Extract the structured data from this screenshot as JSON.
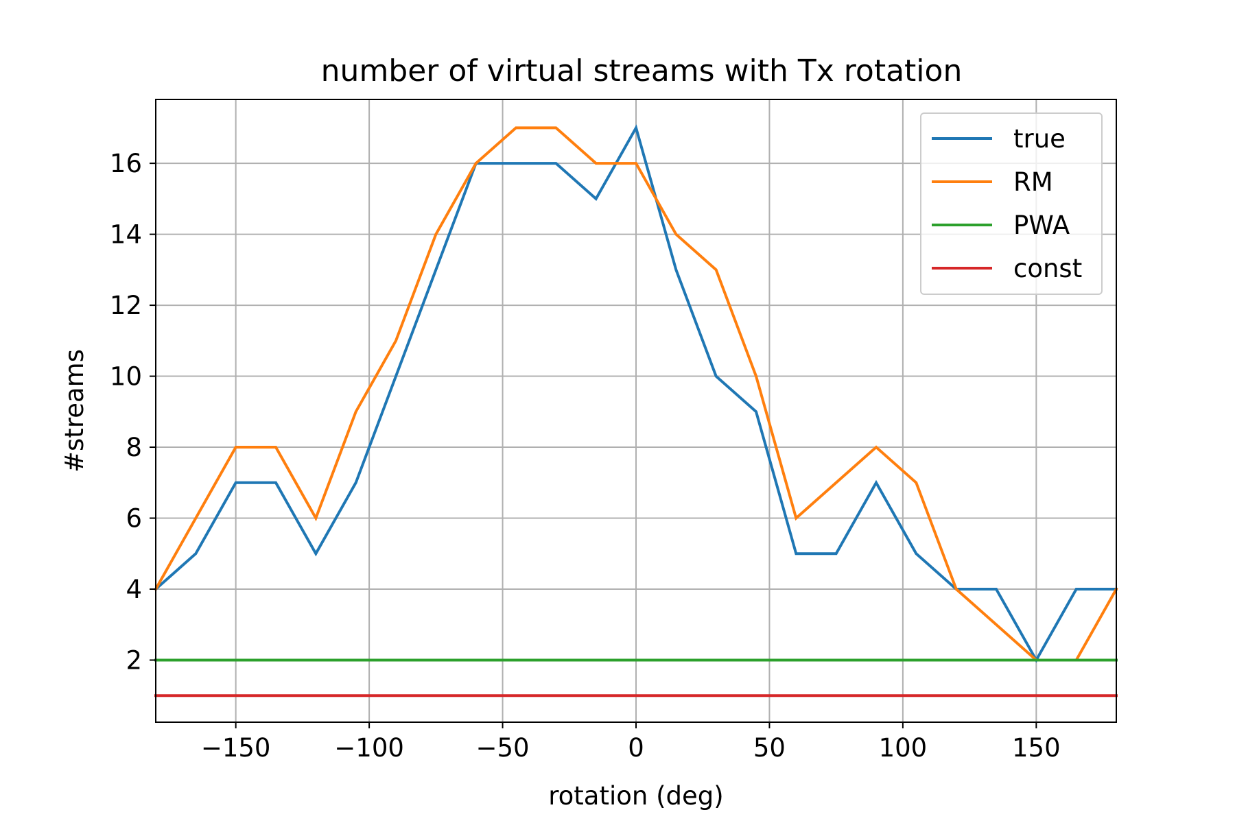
{
  "chart_data": {
    "type": "line",
    "title": "number of virtual streams with Tx rotation",
    "xlabel": "rotation (deg)",
    "ylabel": "#streams",
    "xlim": [
      -180,
      180
    ],
    "ylim": [
      0.25,
      17.8
    ],
    "xticks": [
      -150,
      -100,
      -50,
      0,
      50,
      100,
      150
    ],
    "xtick_labels": [
      "−150",
      "−100",
      "−50",
      "0",
      "50",
      "100",
      "150"
    ],
    "yticks": [
      2,
      4,
      6,
      8,
      10,
      12,
      14,
      16
    ],
    "ytick_labels": [
      "2",
      "4",
      "6",
      "8",
      "10",
      "12",
      "14",
      "16"
    ],
    "grid": true,
    "legend_position": "top-right",
    "x": [
      -180,
      -165,
      -150,
      -135,
      -120,
      -105,
      -90,
      -75,
      -60,
      -45,
      -30,
      -15,
      0,
      15,
      30,
      45,
      60,
      75,
      90,
      105,
      120,
      135,
      150,
      165,
      180
    ],
    "series": [
      {
        "name": "true",
        "color": "#1f77b4",
        "values": [
          4,
          5,
          7,
          7,
          5,
          7,
          10,
          13,
          16,
          16,
          16,
          15,
          17,
          13,
          10,
          9,
          5,
          5,
          7,
          5,
          4,
          4,
          2,
          4,
          4
        ]
      },
      {
        "name": "RM",
        "color": "#ff7f0e",
        "values": [
          4,
          6,
          8,
          8,
          6,
          9,
          11,
          14,
          16,
          17,
          17,
          16,
          16,
          14,
          13,
          10,
          6,
          7,
          8,
          7,
          4,
          3,
          2,
          2,
          4
        ]
      },
      {
        "name": "PWA",
        "color": "#2ca02c",
        "values": [
          2,
          2,
          2,
          2,
          2,
          2,
          2,
          2,
          2,
          2,
          2,
          2,
          2,
          2,
          2,
          2,
          2,
          2,
          2,
          2,
          2,
          2,
          2,
          2,
          2
        ]
      },
      {
        "name": "const",
        "color": "#d62728",
        "values": [
          1,
          1,
          1,
          1,
          1,
          1,
          1,
          1,
          1,
          1,
          1,
          1,
          1,
          1,
          1,
          1,
          1,
          1,
          1,
          1,
          1,
          1,
          1,
          1,
          1
        ]
      }
    ]
  }
}
